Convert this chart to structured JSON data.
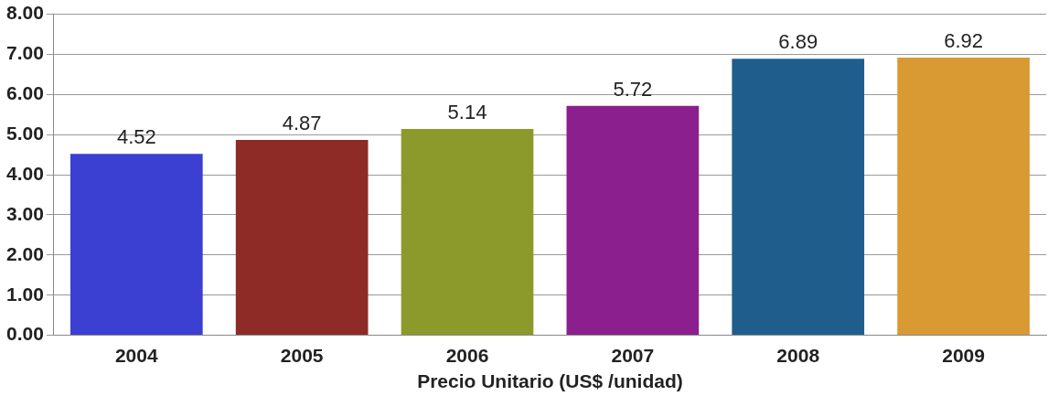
{
  "chart_data": {
    "type": "bar",
    "xlabel": "Precio Unitario (US$ /unidad)",
    "categories": [
      "2004",
      "2005",
      "2006",
      "2007",
      "2008",
      "2009"
    ],
    "values": [
      4.52,
      4.87,
      5.14,
      5.72,
      6.89,
      6.92
    ],
    "colors": [
      "#3b3fd2",
      "#8e2b27",
      "#8c9a2b",
      "#8c1f8e",
      "#1f5e8c",
      "#d99a33"
    ],
    "ylim": [
      0,
      8
    ],
    "yticks": [
      {
        "value": 0,
        "label": "0.00"
      },
      {
        "value": 1,
        "label": "1.00"
      },
      {
        "value": 2,
        "label": "2.00"
      },
      {
        "value": 3,
        "label": "3.00"
      },
      {
        "value": 4,
        "label": "4.00"
      },
      {
        "value": 5,
        "label": "5.00"
      },
      {
        "value": 6,
        "label": "6.00"
      },
      {
        "value": 7,
        "label": "7.00"
      },
      {
        "value": 8,
        "label": "8.00"
      }
    ],
    "grid": "y",
    "data_labels": true,
    "legend": false
  }
}
